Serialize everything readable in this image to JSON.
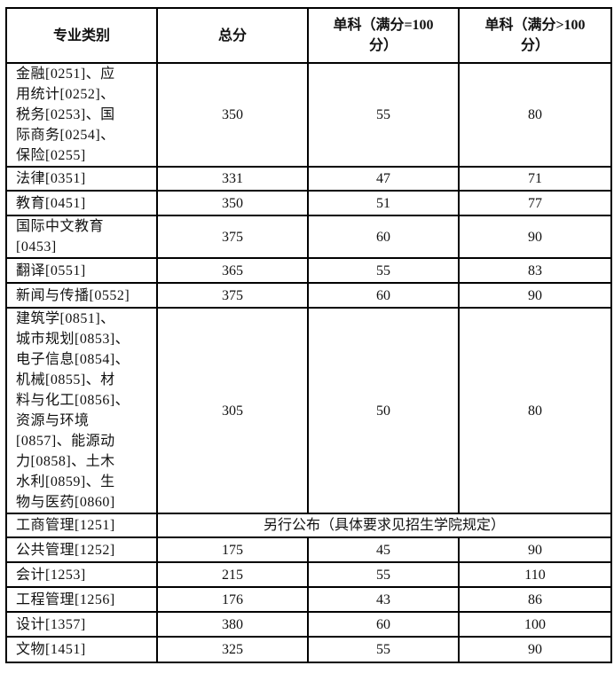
{
  "headers": [
    "专业类别",
    "总分",
    "单科（满分=100\n分）",
    "单科（满分>100\n分）"
  ],
  "rows": [
    {
      "name": "金融[0251]、应\n用统计[0252]、\n税务[0253]、国\n际商务[0254]、\n保险[0255]",
      "total": "350",
      "s100": "55",
      "sover": "80"
    },
    {
      "name": "法律[0351]",
      "total": "331",
      "s100": "47",
      "sover": "71"
    },
    {
      "name": "教育[0451]",
      "total": "350",
      "s100": "51",
      "sover": "77"
    },
    {
      "name": "国际中文教育\n[0453]",
      "total": "375",
      "s100": "60",
      "sover": "90"
    },
    {
      "name": "翻译[0551]",
      "total": "365",
      "s100": "55",
      "sover": "83"
    },
    {
      "name": "新闻与传播[0552]",
      "total": "375",
      "s100": "60",
      "sover": "90"
    },
    {
      "name": "建筑学[0851]、\n城市规划[0853]、\n电子信息[0854]、\n机械[0855]、材\n料与化工[0856]、\n资源与环境\n[0857]、能源动\n力[0858]、土木\n水利[0859]、生\n物与医药[0860]",
      "total": "305",
      "s100": "50",
      "sover": "80"
    },
    {
      "name": "工商管理[1251]",
      "merged": "另行公布（具体要求见招生学院规定）"
    },
    {
      "name": "公共管理[1252]",
      "total": "175",
      "s100": "45",
      "sover": "90"
    },
    {
      "name": "会计[1253]",
      "total": "215",
      "s100": "55",
      "sover": "110"
    },
    {
      "name": "工程管理[1256]",
      "total": "176",
      "s100": "43",
      "sover": "86"
    },
    {
      "name": "设计[1357]",
      "total": "380",
      "s100": "60",
      "sover": "100"
    },
    {
      "name": "文物[1451]",
      "total": "325",
      "s100": "55",
      "sover": "90"
    }
  ]
}
